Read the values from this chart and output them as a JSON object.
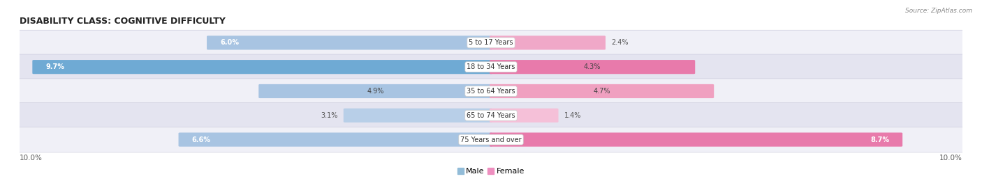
{
  "title": "DISABILITY CLASS: COGNITIVE DIFFICULTY",
  "source": "Source: ZipAtlas.com",
  "categories": [
    "5 to 17 Years",
    "18 to 34 Years",
    "35 to 64 Years",
    "65 to 74 Years",
    "75 Years and over"
  ],
  "male_values": [
    6.0,
    9.7,
    4.9,
    3.1,
    6.6
  ],
  "female_values": [
    2.4,
    4.3,
    4.7,
    1.4,
    8.7
  ],
  "male_colors": [
    "#a8c4e0",
    "#7bafd4",
    "#a8c4e0",
    "#c5d9ed",
    "#a8c4e0"
  ],
  "female_colors": [
    "#f0a0c0",
    "#e87aab",
    "#f0a0c0",
    "#f5b8d0",
    "#e87aab"
  ],
  "male_color": "#92bcd8",
  "female_color": "#ee8fbf",
  "row_bg_light": "#f0f0f7",
  "row_bg_dark": "#e4e4f0",
  "title_fontsize": 9,
  "label_fontsize": 7,
  "axis_label_fontsize": 7.5,
  "category_fontsize": 7,
  "legend_fontsize": 8,
  "x_max": 10.0
}
